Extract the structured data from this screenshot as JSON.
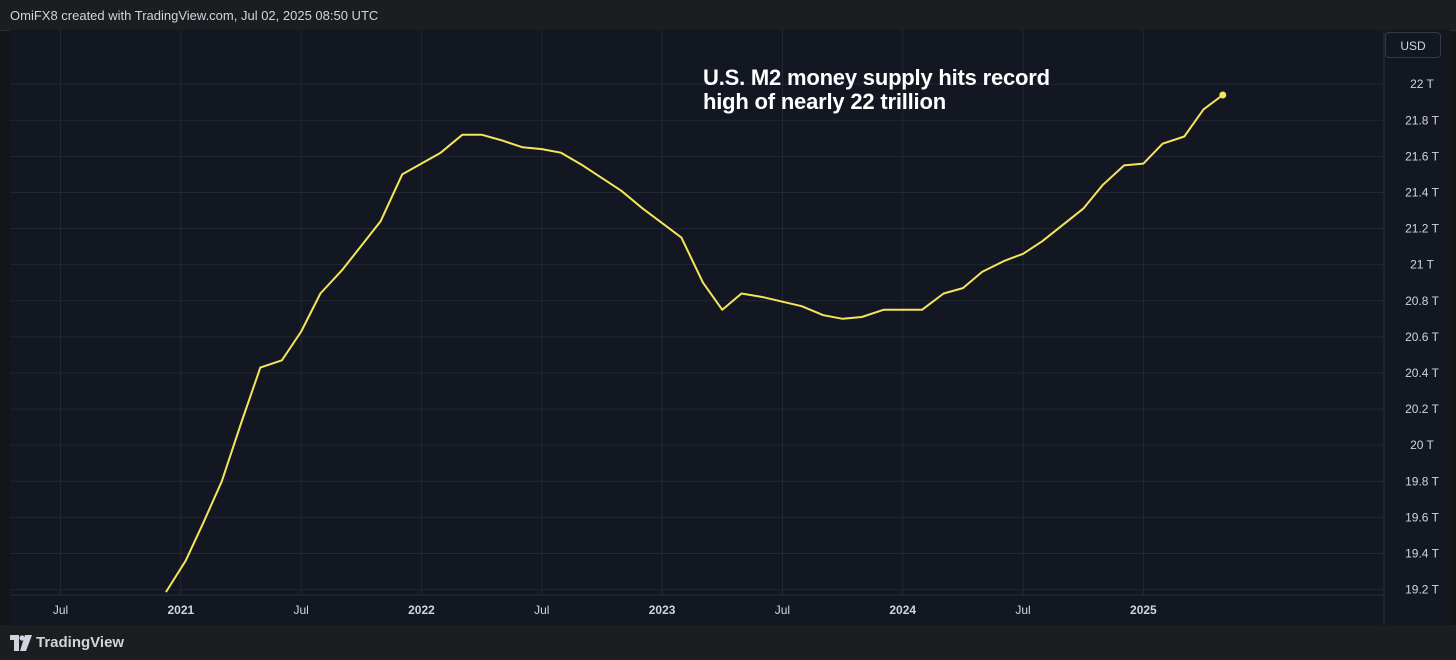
{
  "header": {
    "credit": "OmiFX8 created with TradingView.com, Jul 02, 2025 08:50 UTC"
  },
  "annotation": {
    "line1": "U.S. M2 money supply hits record",
    "line2": "high of nearly 22 trillion"
  },
  "currency": "USD",
  "footer": {
    "brand": "TradingView",
    "brand_icon": "tradingview-logo-icon"
  },
  "colors": {
    "background": "#131722",
    "grid": "#232733",
    "line": "#f5e55b",
    "text": "#d1d4dc"
  },
  "chart_data": {
    "type": "line",
    "title": "U.S. M2 money supply",
    "ylabel": "USD",
    "ylim": [
      19.17,
      22.3
    ],
    "xlim": [
      2020.29,
      2026.0
    ],
    "yticks": [
      {
        "value": 22.0,
        "label": "22 T"
      },
      {
        "value": 21.8,
        "label": "21.8 T"
      },
      {
        "value": 21.6,
        "label": "21.6 T"
      },
      {
        "value": 21.4,
        "label": "21.4 T"
      },
      {
        "value": 21.2,
        "label": "21.2 T"
      },
      {
        "value": 21.0,
        "label": "21 T"
      },
      {
        "value": 20.8,
        "label": "20.8 T"
      },
      {
        "value": 20.6,
        "label": "20.6 T"
      },
      {
        "value": 20.4,
        "label": "20.4 T"
      },
      {
        "value": 20.2,
        "label": "20.2 T"
      },
      {
        "value": 20.0,
        "label": "20 T"
      },
      {
        "value": 19.8,
        "label": "19.8 T"
      },
      {
        "value": 19.6,
        "label": "19.6 T"
      },
      {
        "value": 19.4,
        "label": "19.4 T"
      },
      {
        "value": 19.2,
        "label": "19.2 T"
      }
    ],
    "xticks": [
      {
        "value": 2020.5,
        "label": "Jul",
        "bold": false
      },
      {
        "value": 2021.0,
        "label": "2021",
        "bold": true
      },
      {
        "value": 2021.5,
        "label": "Jul",
        "bold": false
      },
      {
        "value": 2022.0,
        "label": "2022",
        "bold": true
      },
      {
        "value": 2022.5,
        "label": "Jul",
        "bold": false
      },
      {
        "value": 2023.0,
        "label": "2023",
        "bold": true
      },
      {
        "value": 2023.5,
        "label": "Jul",
        "bold": false
      },
      {
        "value": 2024.0,
        "label": "2024",
        "bold": true
      },
      {
        "value": 2024.5,
        "label": "Jul",
        "bold": false
      },
      {
        "value": 2025.0,
        "label": "2025",
        "bold": true
      }
    ],
    "series": [
      {
        "name": "M2",
        "points": [
          [
            2020.94,
            19.19
          ],
          [
            2021.02,
            19.36
          ],
          [
            2021.09,
            19.56
          ],
          [
            2021.17,
            19.8
          ],
          [
            2021.25,
            20.12
          ],
          [
            2021.33,
            20.43
          ],
          [
            2021.42,
            20.47
          ],
          [
            2021.5,
            20.63
          ],
          [
            2021.58,
            20.84
          ],
          [
            2021.67,
            20.97
          ],
          [
            2021.83,
            21.24
          ],
          [
            2021.92,
            21.5
          ],
          [
            2022.08,
            21.62
          ],
          [
            2022.17,
            21.72
          ],
          [
            2022.25,
            21.72
          ],
          [
            2022.33,
            21.69
          ],
          [
            2022.42,
            21.65
          ],
          [
            2022.5,
            21.64
          ],
          [
            2022.58,
            21.62
          ],
          [
            2022.67,
            21.55
          ],
          [
            2022.83,
            21.41
          ],
          [
            2022.92,
            21.31
          ],
          [
            2023.0,
            21.23
          ],
          [
            2023.08,
            21.15
          ],
          [
            2023.17,
            20.9
          ],
          [
            2023.25,
            20.75
          ],
          [
            2023.33,
            20.84
          ],
          [
            2023.42,
            20.82
          ],
          [
            2023.58,
            20.77
          ],
          [
            2023.67,
            20.72
          ],
          [
            2023.75,
            20.7
          ],
          [
            2023.83,
            20.71
          ],
          [
            2023.92,
            20.75
          ],
          [
            2024.0,
            20.75
          ],
          [
            2024.08,
            20.75
          ],
          [
            2024.17,
            20.84
          ],
          [
            2024.25,
            20.87
          ],
          [
            2024.33,
            20.96
          ],
          [
            2024.42,
            21.02
          ],
          [
            2024.5,
            21.06
          ],
          [
            2024.58,
            21.13
          ],
          [
            2024.75,
            21.31
          ],
          [
            2024.83,
            21.44
          ],
          [
            2024.92,
            21.55
          ],
          [
            2025.0,
            21.56
          ],
          [
            2025.08,
            21.67
          ],
          [
            2025.17,
            21.71
          ],
          [
            2025.25,
            21.86
          ],
          [
            2025.33,
            21.94
          ]
        ]
      }
    ]
  }
}
